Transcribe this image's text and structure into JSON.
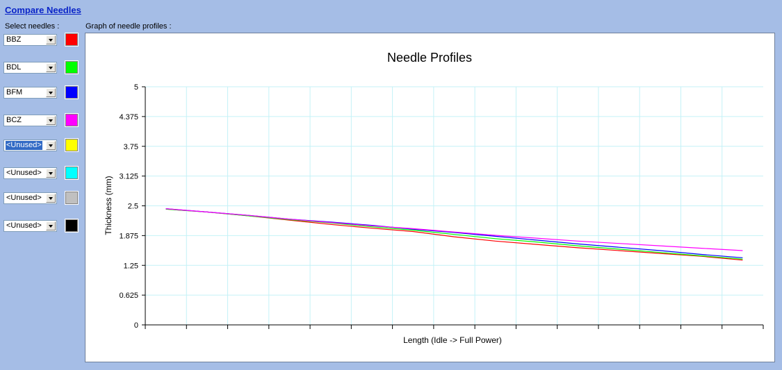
{
  "header": {
    "title": "Compare Needles"
  },
  "labels": {
    "select_needles": "Select needles :",
    "graph_label": "Graph of needle profiles :"
  },
  "needles": [
    {
      "value": "BBZ",
      "color": "#ff0000",
      "selected": false
    },
    {
      "value": "BDL",
      "color": "#00ff00",
      "selected": false
    },
    {
      "value": "BFM",
      "color": "#0000ff",
      "selected": false
    },
    {
      "value": "BCZ",
      "color": "#ff00ff",
      "selected": false
    },
    {
      "value": "<Unused>",
      "color": "#ffff00",
      "selected": true
    },
    {
      "value": "<Unused>",
      "color": "#00ffff",
      "selected": false
    },
    {
      "value": "<Unused>",
      "color": "#c0c0c0",
      "selected": false
    },
    {
      "value": "<Unused>",
      "color": "#000000",
      "selected": false
    }
  ],
  "chart_data": {
    "type": "line",
    "title": "Needle Profiles",
    "xlabel": "Length (Idle -> Full Power)",
    "ylabel": "Thickness (mm)",
    "ylim": [
      0,
      5
    ],
    "yticks": [
      "0",
      "0.625",
      "1.25",
      "1.875",
      "2.5",
      "3.125",
      "3.75",
      "4.375",
      "5"
    ],
    "x": [
      0,
      1,
      2,
      3,
      4,
      5,
      6,
      7,
      8,
      9,
      10,
      11,
      12,
      13,
      14
    ],
    "grid": true,
    "series": [
      {
        "color": "#ff0000",
        "values": [
          2.43,
          2.37,
          2.29,
          2.2,
          2.11,
          2.03,
          1.96,
          1.85,
          1.76,
          1.69,
          1.62,
          1.56,
          1.5,
          1.44,
          1.36
        ]
      },
      {
        "color": "#00ff00",
        "values": [
          2.43,
          2.37,
          2.29,
          2.21,
          2.14,
          2.06,
          1.99,
          1.9,
          1.81,
          1.74,
          1.66,
          1.59,
          1.52,
          1.45,
          1.38
        ]
      },
      {
        "color": "#0000ff",
        "values": [
          2.44,
          2.37,
          2.3,
          2.22,
          2.16,
          2.09,
          2.01,
          1.94,
          1.86,
          1.78,
          1.7,
          1.63,
          1.56,
          1.48,
          1.41
        ]
      },
      {
        "color": "#ff00ff",
        "values": [
          2.44,
          2.37,
          2.3,
          2.22,
          2.15,
          2.08,
          2.02,
          1.95,
          1.88,
          1.82,
          1.76,
          1.71,
          1.66,
          1.61,
          1.56
        ]
      }
    ]
  }
}
